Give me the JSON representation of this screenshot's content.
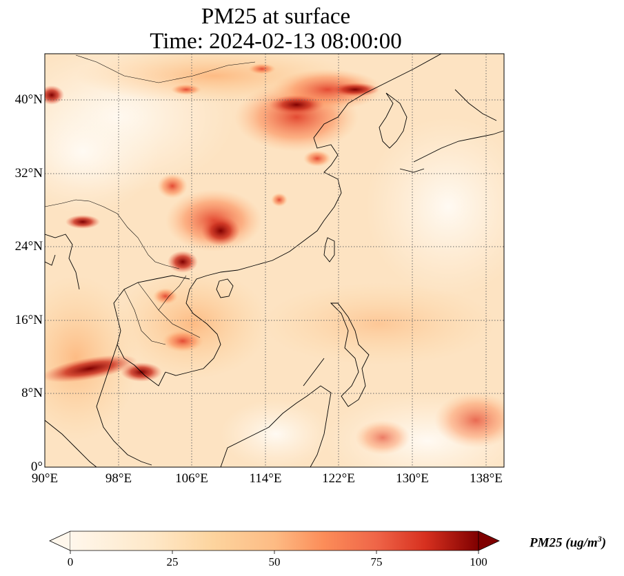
{
  "title": {
    "line1": "PM25 at surface",
    "line2": "Time: 2024-02-13 08:00:00"
  },
  "map": {
    "field": "PM25",
    "projection": "PlateCarree",
    "lon_range": [
      90,
      140
    ],
    "lat_range": [
      0,
      41
    ],
    "gridlines": "dotted",
    "colormap": "OrRd",
    "x_ticks": [
      "90°E",
      "98°E",
      "106°E",
      "114°E",
      "122°E",
      "130°E",
      "138°E"
    ],
    "y_ticks": [
      "40°N",
      "32°N",
      "24°N",
      "16°N",
      "8°N",
      "0°"
    ]
  },
  "colorbar": {
    "label": "PM25 (ug/m",
    "label_sup": "3",
    "label_close": ")",
    "ticks": [
      "0",
      "25",
      "50",
      "75",
      "100"
    ],
    "range": [
      0,
      100
    ],
    "extend": "both"
  },
  "colors": {
    "low": "#fff7ec",
    "mid_low": "#fdd49e",
    "mid": "#fc8d59",
    "high": "#d7301f",
    "max": "#7f0000"
  }
}
